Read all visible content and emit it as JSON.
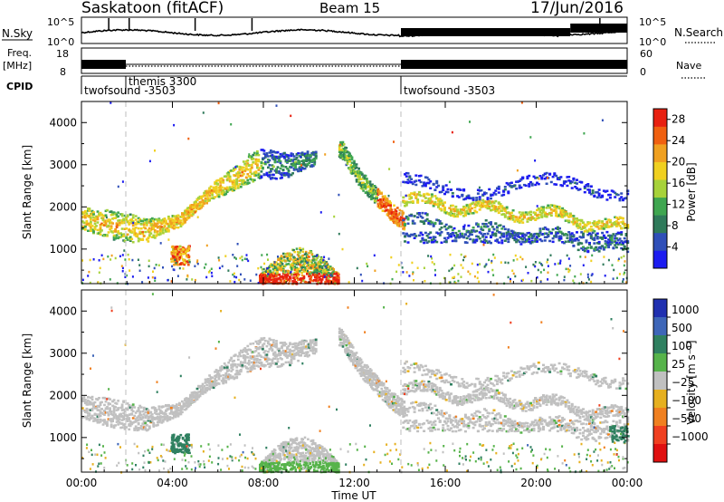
{
  "header": {
    "station": "Saskatoon (fitACF)",
    "beam": "Beam 15",
    "date": "17/Jun/2016"
  },
  "summary_labels": {
    "nsky": "N.Sky",
    "nsearch": "N.Search",
    "freq_top": "Freq.",
    "freq_unit": "[MHz]",
    "nave": "Nave",
    "cpid": "CPID"
  },
  "summary_ticks": {
    "noise_left": [
      "10^5",
      "10^0"
    ],
    "noise_right": [
      "10^5",
      "10^0"
    ],
    "freq_left": [
      "18",
      "8"
    ],
    "nave_right": [
      "60",
      "0"
    ]
  },
  "cpid_modes": [
    {
      "label": "twofsound -3503",
      "start": "00:00",
      "end": "01:57"
    },
    {
      "label": "themis 3300",
      "start": "01:57",
      "end": "14:03"
    },
    {
      "label": "twofsound -3503",
      "start": "14:03",
      "end": "24:00"
    }
  ],
  "colors": {
    "power": [
      "#1c1cf0",
      "#2f4fb8",
      "#2f7a5a",
      "#3fa650",
      "#a7d23a",
      "#f0d020",
      "#f0a020",
      "#f06010",
      "#e82010"
    ],
    "velocity": [
      "#2030b0",
      "#3e66b8",
      "#2f8060",
      "#56b34a",
      "#c0c0c0",
      "#e6b020",
      "#f08020",
      "#f04020",
      "#e01010"
    ],
    "mode_divider": "#c8c8c8"
  },
  "chart_data": [
    {
      "type": "heatmap",
      "panel": "power",
      "xlabel": "Time UT",
      "ylabel": "Slant Range [km]",
      "x_range": [
        "00:00",
        "24:00"
      ],
      "ylim": [
        180,
        4500
      ],
      "y_ticks": [
        "1000",
        "2000",
        "3000",
        "4000"
      ],
      "x_ticks": [
        "00:00",
        "04:00",
        "08:00",
        "12:00",
        "16:00",
        "20:00",
        "00:00"
      ],
      "colorbar": {
        "label": "Power [dB]",
        "ticks": [
          "4",
          "8",
          "12",
          "16",
          "20",
          "24",
          "28"
        ],
        "range": [
          0,
          30
        ]
      },
      "regions": [
        {
          "name": "dawn band",
          "t": [
            0.0,
            2.7,
            4.3,
            5.6,
            7.8
          ],
          "r": [
            1750,
            1450,
            1700,
            2350,
            3050
          ],
          "power": 14
        },
        {
          "name": "afternoon band",
          "t": [
            7.8,
            9.0,
            10.3
          ],
          "r": [
            3050,
            3000,
            3200
          ],
          "power": 8
        },
        {
          "name": "descending band",
          "t": [
            11.4,
            12.2,
            13.6,
            14.1
          ],
          "r": [
            3400,
            2700,
            1900,
            1700
          ],
          "power": 16
        },
        {
          "name": "evening band",
          "t": [
            14.1,
            17.0,
            21.0,
            24.0
          ],
          "r": [
            2200,
            2000,
            1800,
            1500
          ],
          "power": 12
        },
        {
          "name": "near-range blob",
          "t": [
            4.3
          ],
          "r": [
            850
          ],
          "power": 28
        },
        {
          "name": "near-range enhancement",
          "t": [
            8.0,
            9.5,
            11.0
          ],
          "r": [
            300,
            700,
            800
          ],
          "power": 26
        }
      ]
    },
    {
      "type": "heatmap",
      "panel": "velocity",
      "xlabel": "Time UT",
      "ylabel": "Slant Range [km]",
      "x_range": [
        "00:00",
        "24:00"
      ],
      "ylim": [
        180,
        4500
      ],
      "y_ticks": [
        "1000",
        "2000",
        "3000",
        "4000"
      ],
      "x_ticks": [
        "00:00",
        "04:00",
        "08:00",
        "12:00",
        "16:00",
        "20:00",
        "00:00"
      ],
      "colorbar": {
        "label": "Velocity [m s⁻¹]",
        "ticks": [
          "1000",
          "500",
          "100",
          "25",
          "−25",
          "−100",
          "−500",
          "−1000"
        ],
        "range": [
          -1000,
          1000
        ]
      },
      "regions": [
        {
          "name": "ground scatter",
          "t": [
            0.0,
            4.0,
            7.8,
            10.3
          ],
          "r": [
            2000,
            1700,
            3000,
            3200
          ],
          "velocity": 0
        },
        {
          "name": "near-range blob",
          "t": [
            4.3
          ],
          "r": [
            800
          ],
          "velocity": 150
        },
        {
          "name": "near-range flow",
          "t": [
            8.0,
            11.0
          ],
          "r": [
            200,
            200
          ],
          "velocity": 80
        },
        {
          "name": "late evening patch",
          "t": [
            23.5
          ],
          "r": [
            1100
          ],
          "velocity": 150
        }
      ]
    }
  ]
}
